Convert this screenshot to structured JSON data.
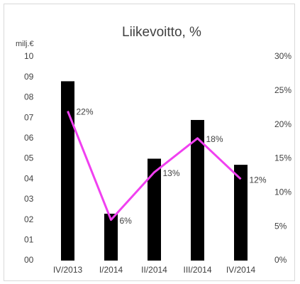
{
  "chart_data": {
    "type": "bar",
    "title": "Liikevoitto, %",
    "y_label": "milj.€",
    "categories": [
      "IV/2013",
      "I/2014",
      "II/2014",
      "III/2014",
      "IV/2014"
    ],
    "series": [
      {
        "color": "#000000",
        "values": [
          8.8,
          2.3,
          5.0,
          6.9,
          4.7
        ]
      },
      {
        "type": "line",
        "axis": "y2",
        "color": "#f040f0",
        "values": [
          22,
          6,
          13,
          18,
          12
        ],
        "value_labels": [
          "22%",
          "6%",
          "13%",
          "18%",
          "12%"
        ]
      }
    ],
    "ylim": [
      0,
      10
    ],
    "yticks": [
      {
        "value": 0,
        "label": "00"
      },
      {
        "value": 1,
        "label": "01"
      },
      {
        "value": 2,
        "label": "02"
      },
      {
        "value": 3,
        "label": "03"
      },
      {
        "value": 4,
        "label": "04"
      },
      {
        "value": 5,
        "label": "05"
      },
      {
        "value": 6,
        "label": "06"
      },
      {
        "value": 7,
        "label": "07"
      },
      {
        "value": 8,
        "label": "08"
      },
      {
        "value": 9,
        "label": "09"
      },
      {
        "value": 10,
        "label": "10"
      }
    ],
    "y2lim": [
      0,
      30
    ],
    "y2ticks": [
      {
        "value": 0,
        "label": "0%"
      },
      {
        "value": 5,
        "label": "5%"
      },
      {
        "value": 10,
        "label": "10%"
      },
      {
        "value": 15,
        "label": "15%"
      },
      {
        "value": 20,
        "label": "20%"
      },
      {
        "value": 25,
        "label": "25%"
      },
      {
        "value": 30,
        "label": "30%"
      }
    ],
    "grid": false
  }
}
